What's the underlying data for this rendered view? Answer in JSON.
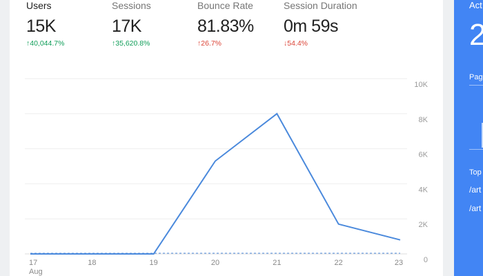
{
  "metrics": [
    {
      "label": "Users",
      "value": "15K",
      "change": "40,044.7%",
      "direction": "up",
      "sentiment": "good"
    },
    {
      "label": "Sessions",
      "value": "17K",
      "change": "35,620.8%",
      "direction": "up",
      "sentiment": "good"
    },
    {
      "label": "Bounce Rate",
      "value": "81.83%",
      "change": "26.7%",
      "direction": "up",
      "sentiment": "bad"
    },
    {
      "label": "Session Duration",
      "value": "0m 59s",
      "change": "54.4%",
      "direction": "down",
      "sentiment": "bad"
    }
  ],
  "chart_data": {
    "type": "line",
    "x": [
      "17",
      "18",
      "19",
      "20",
      "21",
      "22",
      "23"
    ],
    "x_sublabel": "Aug",
    "series": [
      {
        "values": [
          0,
          0,
          0,
          5300,
          8000,
          1700,
          800
        ],
        "color": "#4a89dc",
        "style": "solid"
      },
      {
        "values": [
          0,
          0,
          0,
          0,
          0,
          0,
          0
        ],
        "color": "#4a89dc",
        "style": "dashed"
      }
    ],
    "yticks": [
      "0",
      "2K",
      "4K",
      "6K",
      "8K",
      "10K"
    ],
    "ylim": [
      0,
      10000
    ],
    "grid": true
  },
  "realtime_panel": {
    "title": "Act",
    "value": "2",
    "pageviews_label": "Pag",
    "top_label": "Top",
    "pages": [
      "/art",
      "/art"
    ],
    "color": "#4285f4"
  }
}
